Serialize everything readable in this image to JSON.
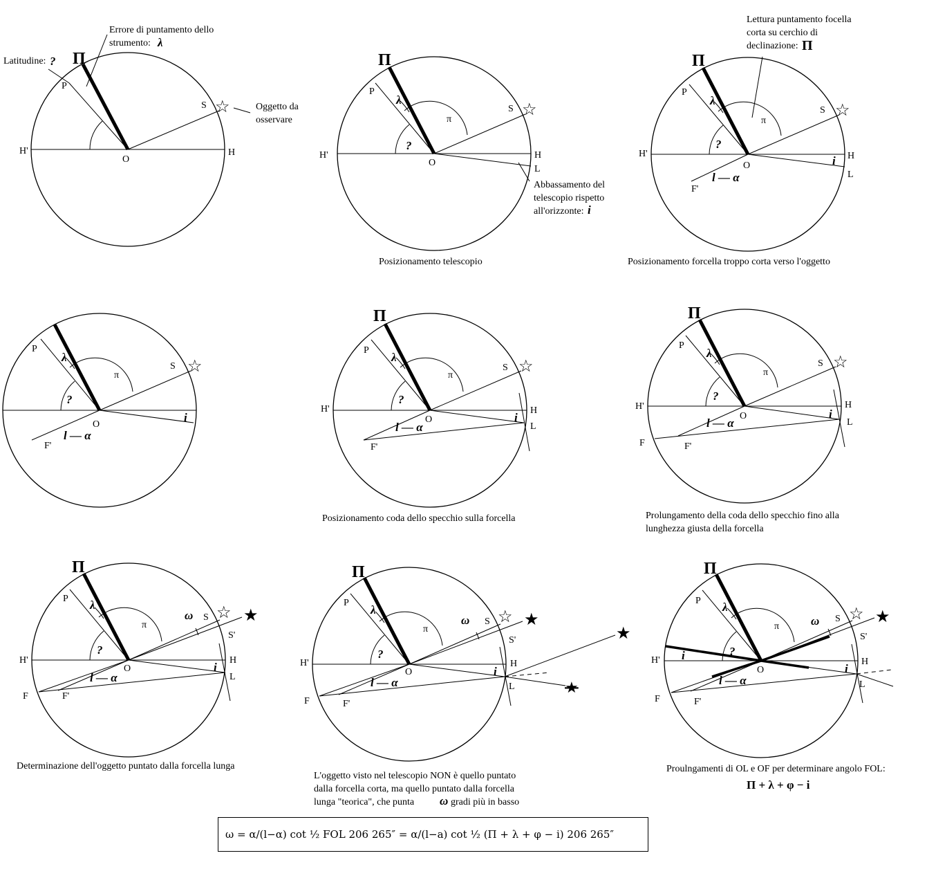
{
  "labels": {
    "pi": "Π",
    "P": "P",
    "lambda": "λ",
    "pi_small": "π",
    "phi": "?",
    "S": "S",
    "S_prime": "S'",
    "H": "H",
    "H_prime": "H'",
    "O": "O",
    "L": "L",
    "F": "F",
    "F_prime": "F'",
    "i": "i",
    "omega": "ω",
    "l_minus_alpha": "l — α",
    "star_open": "☆",
    "star_filled": "★"
  },
  "annotations": {
    "latitudine": "Latitudine:",
    "errore_line1": "Errore di puntamento dello",
    "errore_line2": "strumento:",
    "oggetto_line1": "Oggetto da",
    "oggetto_line2": "osservare",
    "abbass_line1": "Abbassamento del",
    "abbass_line2": "telescopio rispetto",
    "abbass_line3": "all'orizzonte:",
    "lettura_line1": "Lettura puntamento focella",
    "lettura_line2": "corta su cerchio di",
    "lettura_line3": "declinazione:"
  },
  "captions": {
    "c2": "Posizionamento telescopio",
    "c3": "Posizionamento forcella troppo corta verso l'oggetto",
    "c5": "Posizionamento coda dello specchio sulla forcella",
    "c6_line1": "Prolungamento della coda dello specchio fino alla",
    "c6_line2": "lunghezza giusta della forcella",
    "c7": "Determinazione dell'oggetto puntato dalla forcella lunga",
    "c8_line1": "L'oggetto visto nel telescopio NON è quello puntato",
    "c8_line2": "dalla forcella corta, ma quello puntato dalla forcella",
    "c8_line3": "lunga \"teorica\", che punta",
    "c8_line3b": "gradi più in basso",
    "c9_line1": "Proulngamenti di OL e OF per determinare angolo FOL:",
    "c9_line2": "Π + λ + φ − i"
  },
  "formula": {
    "text": "ω  =  α/(l−α) cot ½ FOL 206 265″  =  α/(l−a) cot ½ (Π + λ + φ − i) 206 265″"
  }
}
